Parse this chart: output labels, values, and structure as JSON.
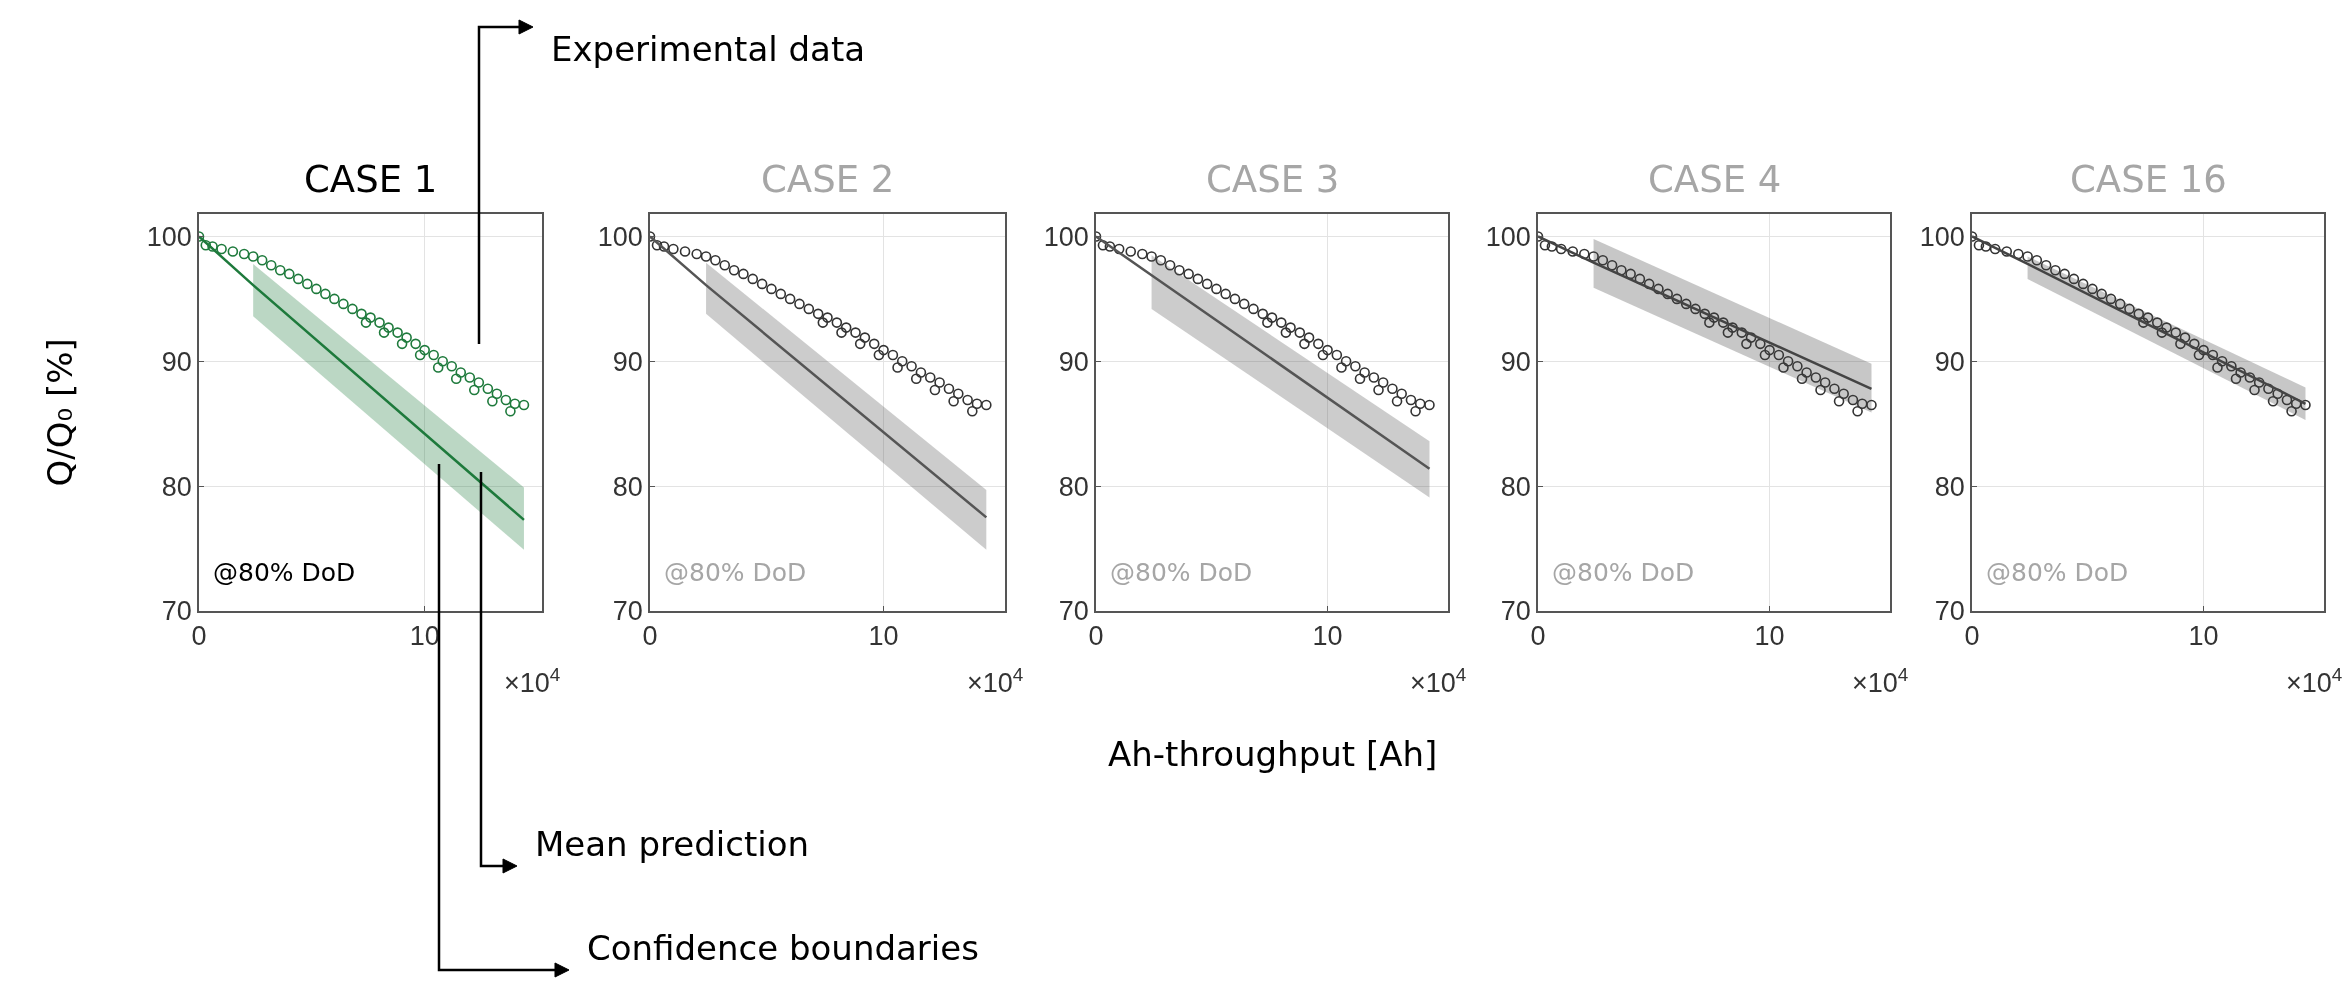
{
  "chart_data": [
    {
      "type": "scatter",
      "title": "CASE 1",
      "ylabel": "Q/Q₀ [%]",
      "xlim": [
        0,
        15.2
      ],
      "xticks": [
        0,
        10
      ],
      "ylim": [
        70,
        101.8
      ],
      "yticks": [
        70,
        80,
        90,
        100
      ],
      "grid": true,
      "annotations": [
        "@80% DoD",
        "×10$^{4}$",
        "Experimental data",
        "Mean prediction",
        "Confidence boundaries"
      ],
      "series": [
        {
          "marker": "circle",
          "color": "#1e7a3c",
          "x": [
            0,
            0.3,
            0.6,
            1,
            1.5,
            2,
            2.4,
            2.8,
            3.2,
            3.6,
            4,
            4.4,
            4.8,
            5.2,
            5.6,
            6,
            6.4,
            6.8,
            7.2,
            7.6,
            8,
            8.4,
            8.8,
            9.2,
            9.6,
            10,
            10.4,
            10.8,
            11.2,
            11.6,
            12,
            12.4,
            12.8,
            13.2,
            13.6,
            14,
            14.4,
            7.4,
            8.2,
            9,
            9.8,
            10.6,
            11.4,
            12.2,
            13,
            13.8
          ],
          "values": [
            100,
            99.3,
            99.2,
            99,
            98.8,
            98.6,
            98.4,
            98.1,
            97.7,
            97.3,
            97.0,
            96.6,
            96.2,
            95.8,
            95.4,
            95.0,
            94.6,
            94.2,
            93.8,
            93.5,
            93.1,
            92.7,
            92.3,
            91.9,
            91.4,
            90.9,
            90.5,
            90.0,
            89.6,
            89.1,
            88.7,
            88.3,
            87.8,
            87.4,
            86.9,
            86.6,
            86.5,
            93.1,
            92.3,
            91.4,
            90.5,
            89.5,
            88.6,
            87.7,
            86.8,
            86.0
          ]
        },
        {
          "type": "line",
          "color": "#1e7a3c",
          "x": [
            0,
            2.4,
            14.4
          ],
          "values": [
            100,
            96.1,
            77.3
          ],
          "lower": [
            null,
            93.6,
            74.9
          ],
          "upper": [
            null,
            97.8,
            79.9
          ]
        }
      ]
    },
    {
      "type": "scatter",
      "title": "CASE 2",
      "xlim": [
        0,
        15.2
      ],
      "xticks": [
        0,
        10
      ],
      "ylim": [
        70,
        101.8
      ],
      "yticks": [
        70,
        80,
        90,
        100
      ],
      "grid": true,
      "annotations": [
        "@80% DoD",
        "×10$^{4}$"
      ],
      "series": [
        {
          "type": "scatter",
          "marker": "circle",
          "color": "#333333",
          "x": [
            0,
            0.3,
            0.6,
            1,
            1.5,
            2,
            2.4,
            2.8,
            3.2,
            3.6,
            4,
            4.4,
            4.8,
            5.2,
            5.6,
            6,
            6.4,
            6.8,
            7.2,
            7.6,
            8,
            8.4,
            8.8,
            9.2,
            9.6,
            10,
            10.4,
            10.8,
            11.2,
            11.6,
            12,
            12.4,
            12.8,
            13.2,
            13.6,
            14,
            14.4,
            7.4,
            8.2,
            9,
            9.8,
            10.6,
            11.4,
            12.2,
            13,
            13.8
          ],
          "values": [
            100,
            99.3,
            99.2,
            99,
            98.8,
            98.6,
            98.4,
            98.1,
            97.7,
            97.3,
            97.0,
            96.6,
            96.2,
            95.8,
            95.4,
            95.0,
            94.6,
            94.2,
            93.8,
            93.5,
            93.1,
            92.7,
            92.3,
            91.9,
            91.4,
            90.9,
            90.5,
            90.0,
            89.6,
            89.1,
            88.7,
            88.3,
            87.8,
            87.4,
            86.9,
            86.6,
            86.5,
            93.1,
            92.3,
            91.4,
            90.5,
            89.5,
            88.6,
            87.7,
            86.8,
            86.0
          ]
        },
        {
          "type": "line",
          "color": "#555555",
          "x": [
            0,
            2.4,
            14.4
          ],
          "values": [
            100,
            96.1,
            77.5
          ],
          "lower": [
            null,
            93.8,
            74.9
          ],
          "upper": [
            null,
            97.9,
            79.7
          ]
        }
      ]
    },
    {
      "type": "scatter",
      "title": "CASE 3",
      "xlabel": "Ah-throughput [Ah]",
      "xlim": [
        0,
        15.2
      ],
      "xticks": [
        0,
        10
      ],
      "ylim": [
        70,
        101.8
      ],
      "yticks": [
        70,
        80,
        90,
        100
      ],
      "grid": true,
      "annotations": [
        "@80% DoD",
        "×10$^{4}$"
      ],
      "series": [
        {
          "type": "scatter",
          "marker": "circle",
          "color": "#333333",
          "x": [
            0,
            0.3,
            0.6,
            1,
            1.5,
            2,
            2.4,
            2.8,
            3.2,
            3.6,
            4,
            4.4,
            4.8,
            5.2,
            5.6,
            6,
            6.4,
            6.8,
            7.2,
            7.6,
            8,
            8.4,
            8.8,
            9.2,
            9.6,
            10,
            10.4,
            10.8,
            11.2,
            11.6,
            12,
            12.4,
            12.8,
            13.2,
            13.6,
            14,
            14.4,
            7.4,
            8.2,
            9,
            9.8,
            10.6,
            11.4,
            12.2,
            13,
            13.8
          ],
          "values": [
            100,
            99.3,
            99.2,
            99,
            98.8,
            98.6,
            98.4,
            98.1,
            97.7,
            97.3,
            97.0,
            96.6,
            96.2,
            95.8,
            95.4,
            95.0,
            94.6,
            94.2,
            93.8,
            93.5,
            93.1,
            92.7,
            92.3,
            91.9,
            91.4,
            90.9,
            90.5,
            90.0,
            89.6,
            89.1,
            88.7,
            88.3,
            87.8,
            87.4,
            86.9,
            86.6,
            86.5,
            93.1,
            92.3,
            91.4,
            90.5,
            89.5,
            88.6,
            87.7,
            86.8,
            86.0
          ]
        },
        {
          "type": "line",
          "color": "#555555",
          "x": [
            0,
            2.4,
            14.4
          ],
          "values": [
            100,
            96.9,
            81.4
          ],
          "lower": [
            null,
            94.2,
            79.1
          ],
          "upper": [
            null,
            98.5,
            83.6
          ]
        }
      ]
    },
    {
      "type": "scatter",
      "title": "CASE 4",
      "xlim": [
        0,
        15.2
      ],
      "xticks": [
        0,
        10
      ],
      "ylim": [
        70,
        101.8
      ],
      "yticks": [
        70,
        80,
        90,
        100
      ],
      "grid": true,
      "annotations": [
        "@80% DoD",
        "×10$^{4}$"
      ],
      "series": [
        {
          "type": "scatter",
          "marker": "circle",
          "color": "#333333",
          "x": [
            0,
            0.3,
            0.6,
            1,
            1.5,
            2,
            2.4,
            2.8,
            3.2,
            3.6,
            4,
            4.4,
            4.8,
            5.2,
            5.6,
            6,
            6.4,
            6.8,
            7.2,
            7.6,
            8,
            8.4,
            8.8,
            9.2,
            9.6,
            10,
            10.4,
            10.8,
            11.2,
            11.6,
            12,
            12.4,
            12.8,
            13.2,
            13.6,
            14,
            14.4,
            7.4,
            8.2,
            9,
            9.8,
            10.6,
            11.4,
            12.2,
            13,
            13.8
          ],
          "values": [
            100,
            99.3,
            99.2,
            99,
            98.8,
            98.6,
            98.4,
            98.1,
            97.7,
            97.3,
            97.0,
            96.6,
            96.2,
            95.8,
            95.4,
            95.0,
            94.6,
            94.2,
            93.8,
            93.5,
            93.1,
            92.7,
            92.3,
            91.9,
            91.4,
            90.9,
            90.5,
            90.0,
            89.6,
            89.1,
            88.7,
            88.3,
            87.8,
            87.4,
            86.9,
            86.6,
            86.5,
            93.1,
            92.3,
            91.4,
            90.5,
            89.5,
            88.6,
            87.7,
            86.8,
            86.0
          ]
        },
        {
          "type": "line",
          "color": "#444444",
          "x": [
            0,
            2.4,
            14.4
          ],
          "values": [
            100,
            97.9,
            87.8
          ],
          "lower": [
            null,
            95.9,
            85.9
          ],
          "upper": [
            null,
            99.8,
            89.8
          ]
        }
      ]
    },
    {
      "type": "scatter",
      "title": "CASE 16",
      "xlim": [
        0,
        15.2
      ],
      "xticks": [
        0,
        10
      ],
      "ylim": [
        70,
        101.8
      ],
      "yticks": [
        70,
        80,
        90,
        100
      ],
      "grid": true,
      "annotations": [
        "@80% DoD",
        "×10$^{4}$"
      ],
      "series": [
        {
          "type": "scatter",
          "marker": "circle",
          "color": "#333333",
          "x": [
            0,
            0.3,
            0.6,
            1,
            1.5,
            2,
            2.4,
            2.8,
            3.2,
            3.6,
            4,
            4.4,
            4.8,
            5.2,
            5.6,
            6,
            6.4,
            6.8,
            7.2,
            7.6,
            8,
            8.4,
            8.8,
            9.2,
            9.6,
            10,
            10.4,
            10.8,
            11.2,
            11.6,
            12,
            12.4,
            12.8,
            13.2,
            13.6,
            14,
            14.4,
            7.4,
            8.2,
            9,
            9.8,
            10.6,
            11.4,
            12.2,
            13,
            13.8
          ],
          "values": [
            100,
            99.3,
            99.2,
            99,
            98.8,
            98.6,
            98.4,
            98.1,
            97.7,
            97.3,
            97.0,
            96.6,
            96.2,
            95.8,
            95.4,
            95.0,
            94.6,
            94.2,
            93.8,
            93.5,
            93.1,
            92.7,
            92.3,
            91.9,
            91.4,
            90.9,
            90.5,
            90.0,
            89.6,
            89.1,
            88.7,
            88.3,
            87.8,
            87.4,
            86.9,
            86.6,
            86.5,
            93.1,
            92.3,
            91.4,
            90.5,
            89.5,
            88.6,
            87.7,
            86.8,
            86.0
          ]
        },
        {
          "type": "line",
          "color": "#444444",
          "x": [
            0,
            2.4,
            14.4
          ],
          "values": [
            100,
            97.8,
            86.6
          ],
          "lower": [
            null,
            96.6,
            85.3
          ],
          "upper": [
            null,
            98.4,
            87.9
          ]
        }
      ]
    }
  ]
}
